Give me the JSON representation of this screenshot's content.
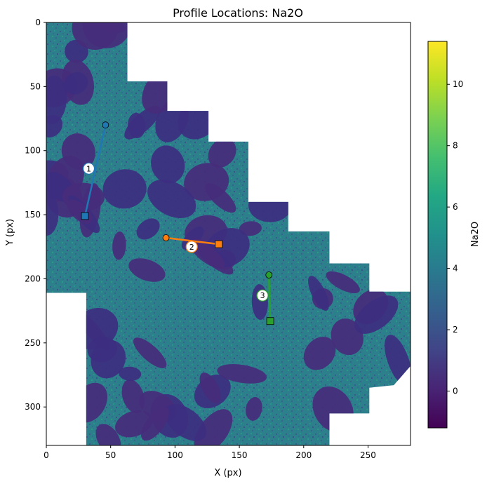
{
  "chart_data": {
    "type": "heatmap",
    "title": "Profile Locations: Na2O",
    "xlabel": "X (px)",
    "ylabel": "Y (px)",
    "xlim": [
      0,
      283
    ],
    "ylim": [
      330,
      0
    ],
    "x_ticks": [
      0,
      50,
      100,
      150,
      200,
      250
    ],
    "y_ticks": [
      0,
      50,
      100,
      150,
      200,
      250,
      300
    ],
    "colorbar": {
      "label": "Na2O",
      "colormap": "viridis",
      "range": [
        -1.2,
        11.4
      ],
      "ticks": [
        0,
        2,
        4,
        6,
        8,
        10
      ]
    },
    "mask_polygon": [
      [
        0,
        0
      ],
      [
        63,
        0
      ],
      [
        63,
        46
      ],
      [
        94,
        46
      ],
      [
        94,
        69
      ],
      [
        126,
        69
      ],
      [
        126,
        93
      ],
      [
        157,
        93
      ],
      [
        157,
        140
      ],
      [
        188,
        140
      ],
      [
        188,
        163
      ],
      [
        220,
        163
      ],
      [
        220,
        188
      ],
      [
        251,
        188
      ],
      [
        251,
        210
      ],
      [
        283,
        210
      ],
      [
        283,
        268
      ],
      [
        270,
        283
      ],
      [
        251,
        285
      ],
      [
        251,
        305
      ],
      [
        220,
        305
      ],
      [
        220,
        330
      ],
      [
        31,
        330
      ],
      [
        31,
        211
      ],
      [
        0,
        211
      ]
    ],
    "profiles": [
      {
        "label": "1",
        "color": "#1f77b4",
        "start": [
          46,
          80
        ],
        "end": [
          30,
          151
        ],
        "label_pos": [
          33,
          114
        ]
      },
      {
        "label": "2",
        "color": "#ff7f0e",
        "start": [
          93,
          168
        ],
        "end": [
          134,
          173
        ],
        "label_pos": [
          113,
          175
        ]
      },
      {
        "label": "3",
        "color": "#2ca02c",
        "start": [
          173,
          197
        ],
        "end": [
          174,
          233
        ],
        "label_pos": [
          168,
          213
        ]
      }
    ]
  }
}
